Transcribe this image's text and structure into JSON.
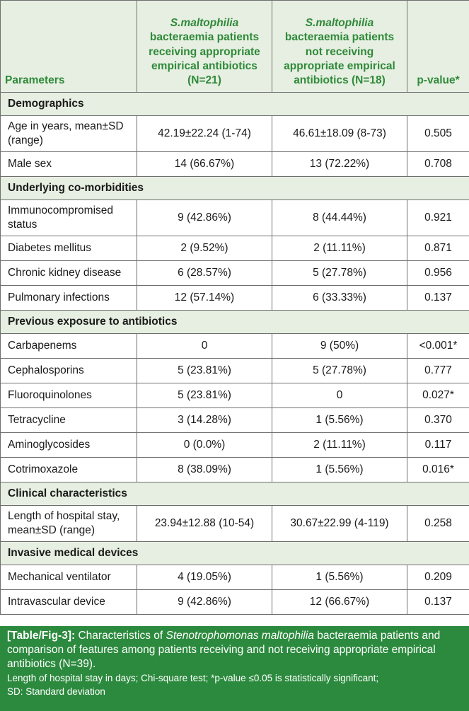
{
  "header": {
    "parameters": "Parameters",
    "col_receiving_italic": "S.maltophilia",
    "col_receiving_rest": "bacteraemia patients receiving appropriate empirical antibiotics (N=21)",
    "col_not_receiving_italic": "S.maltophilia",
    "col_not_receiving_rest": "bacteraemia patients not receiving appropriate empirical antibiotics (N=18)",
    "col_pvalue": "p-value*"
  },
  "sections": [
    {
      "title": "Demographics",
      "rows": [
        {
          "label": "Age in years, mean±SD (range)",
          "a": "42.19±22.24 (1-74)",
          "b": "46.61±18.09 (8-73)",
          "p": "0.505"
        },
        {
          "label": "Male sex",
          "a": "14 (66.67%)",
          "b": "13 (72.22%)",
          "p": "0.708"
        }
      ]
    },
    {
      "title": "Underlying co-morbidities",
      "rows": [
        {
          "label": "Immunocompromised status",
          "a": "9 (42.86%)",
          "b": "8 (44.44%)",
          "p": "0.921"
        },
        {
          "label": "Diabetes mellitus",
          "a": "2 (9.52%)",
          "b": "2 (11.11%)",
          "p": "0.871"
        },
        {
          "label": "Chronic kidney disease",
          "a": "6 (28.57%)",
          "b": "5 (27.78%)",
          "p": "0.956"
        },
        {
          "label": "Pulmonary infections",
          "a": "12 (57.14%)",
          "b": "6 (33.33%)",
          "p": "0.137"
        }
      ]
    },
    {
      "title": "Previous exposure to antibiotics",
      "rows": [
        {
          "label": "Carbapenems",
          "a": "0",
          "b": "9 (50%)",
          "p": "<0.001*"
        },
        {
          "label": "Cephalosporins",
          "a": "5 (23.81%)",
          "b": "5 (27.78%)",
          "p": "0.777"
        },
        {
          "label": "Fluoroquinolones",
          "a": "5 (23.81%)",
          "b": "0",
          "p": "0.027*"
        },
        {
          "label": "Tetracycline",
          "a": "3 (14.28%)",
          "b": "1 (5.56%)",
          "p": "0.370"
        },
        {
          "label": "Aminoglycosides",
          "a": "0 (0.0%)",
          "b": "2 (11.11%)",
          "p": "0.117"
        },
        {
          "label": "Cotrimoxazole",
          "a": "8 (38.09%)",
          "b": "1 (5.56%)",
          "p": "0.016*"
        }
      ]
    },
    {
      "title": "Clinical characteristics",
      "rows": [
        {
          "label": "Length of hospital stay, mean±SD (range)",
          "a": "23.94±12.88 (10-54)",
          "b": "30.67±22.99 (4-119)",
          "p": "0.258"
        }
      ]
    },
    {
      "title": "Invasive medical devices",
      "rows": [
        {
          "label": "Mechanical ventilator",
          "a": "4 (19.05%)",
          "b": "1 (5.56%)",
          "p": "0.209"
        },
        {
          "label": "Intravascular device",
          "a": "9 (42.86%)",
          "b": "12 (66.67%)",
          "p": "0.137"
        }
      ]
    }
  ],
  "caption": {
    "label": "[Table/Fig-3]:",
    "text_before": "Characteristics of",
    "italic": "Stenotrophomonas maltophilia",
    "text_after": "bacteraemia patients and comparison of features among patients receiving and not receiving appropriate empirical antibiotics (N=39).",
    "note_line1": "Length of hospital stay in days; Chi-square test; *p-value ≤0.05 is statistically significant;",
    "note_line2": "SD: Standard deviation"
  },
  "colors": {
    "header_bg": "#e6efe1",
    "header_text": "#2f8a3a",
    "caption_bg": "#2c8a3e"
  }
}
